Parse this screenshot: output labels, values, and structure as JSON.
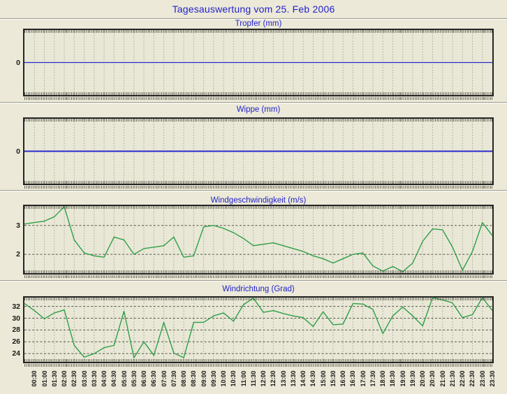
{
  "title": "Tagesauswertung vom 25. Feb 2006",
  "colors": {
    "page_bg": "#ece9d8",
    "plot_bg": "#e9e8d6",
    "title_blue": "#2222cc",
    "grid_minor": "#a8a69a",
    "grid_major": "#55554d",
    "series_blue": "#2929cc",
    "series_green": "#2f9e49",
    "axis_text": "#1a1a1a",
    "plot_border": "#262626"
  },
  "x_axis": {
    "start": "00:00",
    "interval_minutes": 30,
    "labels": [
      "00:30",
      "01:00",
      "01:30",
      "02:00",
      "02:30",
      "03:00",
      "03:30",
      "04:00",
      "04:30",
      "05:00",
      "05:30",
      "06:00",
      "06:30",
      "07:00",
      "07:30",
      "08:00",
      "08:30",
      "09:00",
      "09:30",
      "10:00",
      "10:30",
      "11:00",
      "11:30",
      "12:00",
      "12:30",
      "13:00",
      "13:30",
      "14:00",
      "14:30",
      "15:00",
      "15:30",
      "16:00",
      "16:30",
      "17:00",
      "17:30",
      "18:00",
      "18:30",
      "19:00",
      "19:30",
      "20:00",
      "20:30",
      "21:00",
      "21:30",
      "22:00",
      "22:30",
      "23:00",
      "23:30"
    ]
  },
  "chart_data": [
    {
      "type": "line",
      "title": "Tropfer (mm)",
      "yticks": [
        0
      ],
      "ylim": [
        -1,
        1
      ],
      "grid": "vertical-dashed",
      "series_color": "#2929cc",
      "line_width": 1.2,
      "values": [
        0,
        0,
        0,
        0,
        0,
        0,
        0,
        0,
        0,
        0,
        0,
        0,
        0,
        0,
        0,
        0,
        0,
        0,
        0,
        0,
        0,
        0,
        0,
        0,
        0,
        0,
        0,
        0,
        0,
        0,
        0,
        0,
        0,
        0,
        0,
        0,
        0,
        0,
        0,
        0,
        0,
        0,
        0,
        0,
        0,
        0,
        0,
        0
      ]
    },
    {
      "type": "line",
      "title": "Wippe (mm)",
      "yticks": [
        0
      ],
      "ylim": [
        -1,
        1
      ],
      "grid": "vertical-dashed",
      "series_color": "#2929cc",
      "line_width": 2,
      "values": [
        0,
        0,
        0,
        0,
        0,
        0,
        0,
        0,
        0,
        0,
        0,
        0,
        0,
        0,
        0,
        0,
        0,
        0,
        0,
        0,
        0,
        0,
        0,
        0,
        0,
        0,
        0,
        0,
        0,
        0,
        0,
        0,
        0,
        0,
        0,
        0,
        0,
        0,
        0,
        0,
        0,
        0,
        0,
        0,
        0,
        0,
        0,
        0
      ]
    },
    {
      "type": "line",
      "title": "Windgeschwindigkeit (m/s)",
      "yticks": [
        3,
        2
      ],
      "ylim": [
        1.35,
        3.67
      ],
      "grid": "vertical-and-horizontal-dashed",
      "series_color": "#2f9e49",
      "line_width": 1.4,
      "values": [
        3.05,
        3.1,
        3.15,
        3.3,
        3.65,
        2.5,
        2.05,
        1.95,
        1.9,
        2.6,
        2.5,
        2.0,
        2.2,
        2.25,
        2.3,
        2.6,
        1.9,
        1.95,
        2.95,
        3.0,
        2.9,
        2.75,
        2.55,
        2.3,
        2.35,
        2.4,
        2.3,
        2.2,
        2.1,
        1.95,
        1.85,
        1.7,
        1.85,
        2.0,
        2.05,
        1.6,
        1.42,
        1.58,
        1.4,
        1.7,
        2.45,
        2.88,
        2.85,
        2.25,
        1.45,
        2.1,
        3.1,
        2.65
      ]
    },
    {
      "type": "line",
      "title": "Windrichtung (Grad)",
      "yticks": [
        32,
        30,
        28,
        26,
        24
      ],
      "ylim": [
        22.6,
        33.5
      ],
      "grid": "vertical-and-horizontal-dashed",
      "series_color": "#2f9e49",
      "line_width": 1.4,
      "values": [
        32.5,
        31.3,
        29.9,
        30.9,
        31.4,
        25.4,
        23.4,
        24.0,
        25.0,
        25.4,
        31.2,
        23.3,
        26.0,
        23.7,
        29.3,
        24.1,
        23.3,
        29.3,
        29.3,
        30.4,
        30.9,
        29.5,
        32.3,
        33.4,
        31.0,
        31.3,
        30.8,
        30.4,
        30.1,
        28.6,
        31.1,
        28.9,
        29.0,
        32.5,
        32.4,
        31.5,
        27.4,
        30.4,
        31.9,
        30.4,
        28.7,
        33.5,
        33.1,
        32.6,
        30.1,
        30.6,
        33.5,
        31.3
      ]
    }
  ]
}
